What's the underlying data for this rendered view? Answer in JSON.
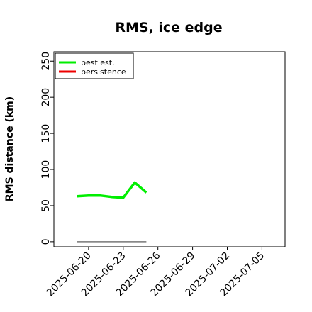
{
  "chart_data": {
    "type": "line",
    "title": "RMS, ice edge",
    "xlabel": "",
    "ylabel": "RMS distance (km)",
    "x_type": "date",
    "xlim": [
      "2025-06-17",
      "2025-07-07"
    ],
    "ylim": [
      -7,
      263
    ],
    "x_ticks": [
      "2025-06-20",
      "2025-06-23",
      "2025-06-26",
      "2025-06-29",
      "2025-07-02",
      "2025-07-05"
    ],
    "y_ticks": [
      0,
      50,
      100,
      150,
      200,
      250
    ],
    "grid": false,
    "legend_position": "top-left",
    "series": [
      {
        "name": "best est.",
        "color": "#00ee00",
        "x": [
          "2025-06-19",
          "2025-06-20",
          "2025-06-21",
          "2025-06-22",
          "2025-06-23",
          "2025-06-24",
          "2025-06-25"
        ],
        "y": [
          63,
          64,
          64,
          62,
          61,
          82,
          68
        ]
      },
      {
        "name": "persistence",
        "color": "#ee0000",
        "x": [],
        "y": []
      }
    ],
    "reference_line": {
      "color": "#777777",
      "x": [
        "2025-06-19",
        "2025-06-25"
      ],
      "y": [
        0,
        0
      ]
    }
  }
}
